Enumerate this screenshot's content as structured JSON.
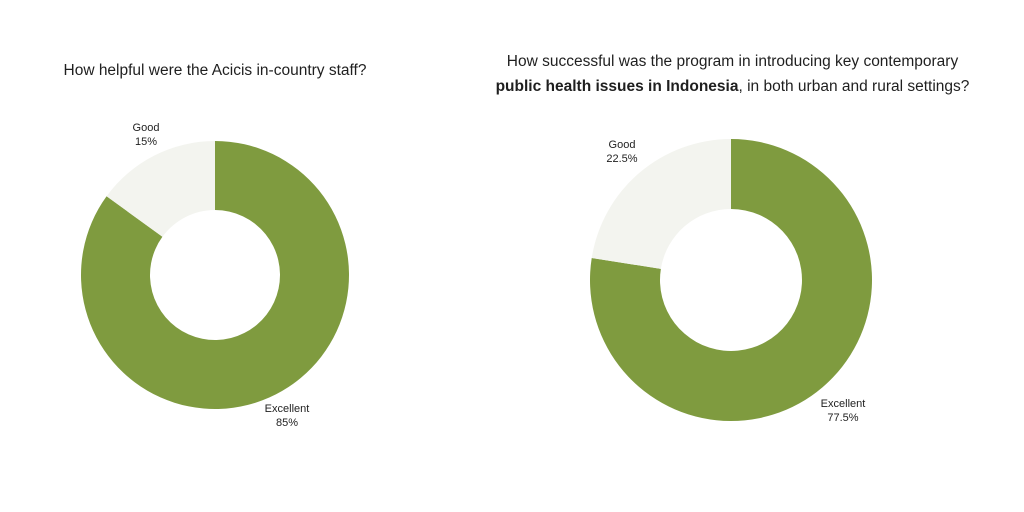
{
  "chart_data": [
    {
      "type": "pie",
      "title": "How helpful were the Acicis in-country staff?",
      "categories": [
        "Excellent",
        "Good"
      ],
      "values": [
        85,
        15
      ],
      "value_labels": [
        "85%",
        "15%"
      ],
      "colors": [
        "#7f9b3f",
        "#f3f4ef"
      ],
      "donut": true,
      "legend": "none"
    },
    {
      "type": "pie",
      "title_parts": {
        "line1": "How successful was the program in introducing key contemporary",
        "bold": "public health issues in Indonesia",
        "rest": ", in both urban and rural settings?"
      },
      "categories": [
        "Excellent",
        "Good"
      ],
      "values": [
        77.5,
        22.5
      ],
      "value_labels": [
        "77.5%",
        "22.5%"
      ],
      "colors": [
        "#7f9b3f",
        "#f3f4ef"
      ],
      "donut": true,
      "legend": "none"
    }
  ]
}
